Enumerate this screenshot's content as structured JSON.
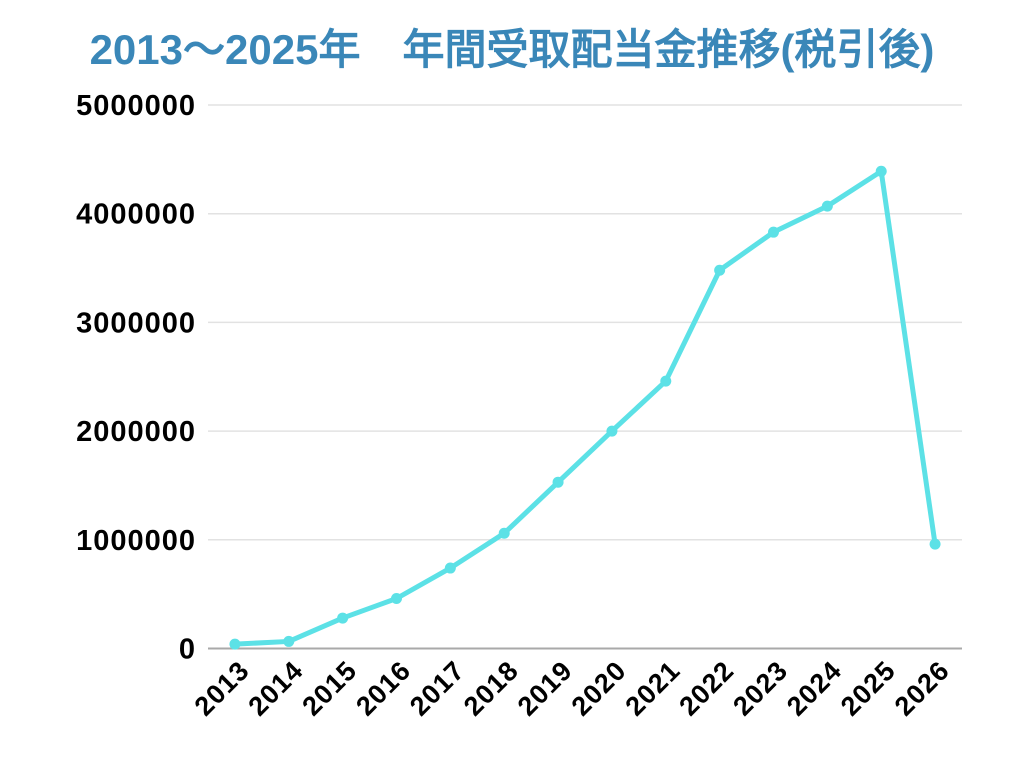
{
  "title": {
    "text": "2013～2025年　年間受取配当金推移(税引後)",
    "color": "#3a87b8"
  },
  "chart_data": {
    "type": "line",
    "title": "2013～2025年　年間受取配当金推移(税引後)",
    "categories": [
      "2013",
      "2014",
      "2015",
      "2016",
      "2017",
      "2018",
      "2019",
      "2020",
      "2021",
      "2022",
      "2023",
      "2024",
      "2025",
      "2026"
    ],
    "values": [
      40000,
      65000,
      280000,
      460000,
      740000,
      1060000,
      1530000,
      2000000,
      2460000,
      3480000,
      3830000,
      4070000,
      4390000,
      960000
    ],
    "xlabel": "",
    "ylabel": "",
    "ylim": [
      0,
      5000000
    ],
    "yticks": [
      0,
      1000000,
      2000000,
      3000000,
      4000000,
      5000000
    ],
    "ytick_labels": [
      "0",
      "1000000",
      "2000000",
      "3000000",
      "4000000",
      "5000000"
    ],
    "grid": true,
    "legend": false,
    "legend_position": "none",
    "line_color": "#5ce1e6",
    "marker_color": "#5ce1e6",
    "marker": "circle",
    "gridline_color": "#e2e2e2",
    "axis_line_color": "#a9a9a9",
    "tick_label_color": "#000000"
  }
}
